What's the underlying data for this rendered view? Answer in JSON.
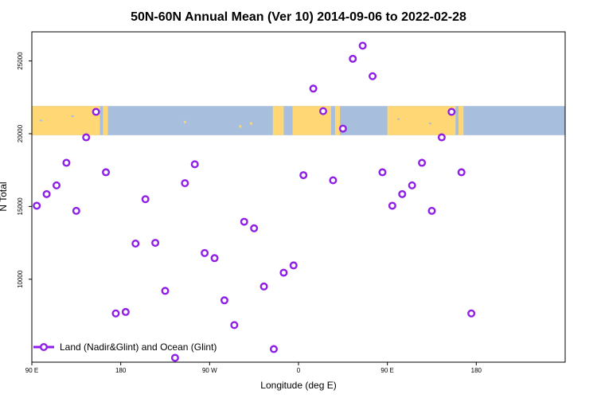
{
  "chart_data": {
    "type": "scatter",
    "title": "50N-60N Annual Mean (Ver 10)   2014-09-06 to 2022-02-28",
    "xlabel": "Longitude (deg E)",
    "ylabel": "N Total",
    "x_range": [
      90,
      630
    ],
    "ylim": [
      4300,
      27000
    ],
    "x_ticks": [
      {
        "value": 90,
        "label": "90 E"
      },
      {
        "value": 180,
        "label": "180"
      },
      {
        "value": 270,
        "label": "90 W"
      },
      {
        "value": 360,
        "label": "0"
      },
      {
        "value": 450,
        "label": "90 E"
      },
      {
        "value": 540,
        "label": "180"
      }
    ],
    "y_ticks": [
      {
        "value": 10000,
        "label": "10000"
      },
      {
        "value": 15000,
        "label": "15000"
      },
      {
        "value": 20000,
        "label": "20000"
      },
      {
        "value": 25000,
        "label": "25000"
      }
    ],
    "map_band": {
      "lat_range": "50N-60N",
      "y_from": 19900,
      "y_to": 21900,
      "land_color": "#ffd775",
      "ocean_color": "#a7bedd"
    },
    "series": [
      {
        "name": "Land (Nadir&Glint) and Ocean (Glint)",
        "color": "#8f1ee6",
        "points": [
          [
            95,
            15050
          ],
          [
            105,
            15850
          ],
          [
            115,
            16450
          ],
          [
            125,
            18000
          ],
          [
            135,
            14700
          ],
          [
            145,
            19750
          ],
          [
            155,
            21500
          ],
          [
            165,
            17350
          ],
          [
            175,
            7650
          ],
          [
            185,
            7750
          ],
          [
            195,
            12450
          ],
          [
            205,
            15500
          ],
          [
            215,
            12500
          ],
          [
            225,
            9200
          ],
          [
            235,
            4600
          ],
          [
            245,
            16600
          ],
          [
            255,
            17900
          ],
          [
            265,
            11800
          ],
          [
            275,
            11450
          ],
          [
            285,
            8550
          ],
          [
            295,
            6850
          ],
          [
            305,
            13950
          ],
          [
            315,
            13500
          ],
          [
            325,
            9500
          ],
          [
            335,
            5200
          ],
          [
            345,
            10450
          ],
          [
            355,
            10950
          ],
          [
            365,
            17150
          ],
          [
            375,
            23100
          ],
          [
            385,
            21550
          ],
          [
            395,
            16800
          ],
          [
            405,
            20350
          ],
          [
            415,
            25150
          ],
          [
            425,
            26050
          ],
          [
            435,
            23950
          ],
          [
            445,
            17350
          ],
          [
            455,
            15050
          ],
          [
            465,
            15850
          ],
          [
            475,
            16450
          ],
          [
            485,
            18000
          ],
          [
            495,
            14700
          ],
          [
            505,
            19750
          ],
          [
            515,
            21500
          ],
          [
            525,
            17350
          ],
          [
            535,
            7650
          ]
        ]
      }
    ]
  }
}
